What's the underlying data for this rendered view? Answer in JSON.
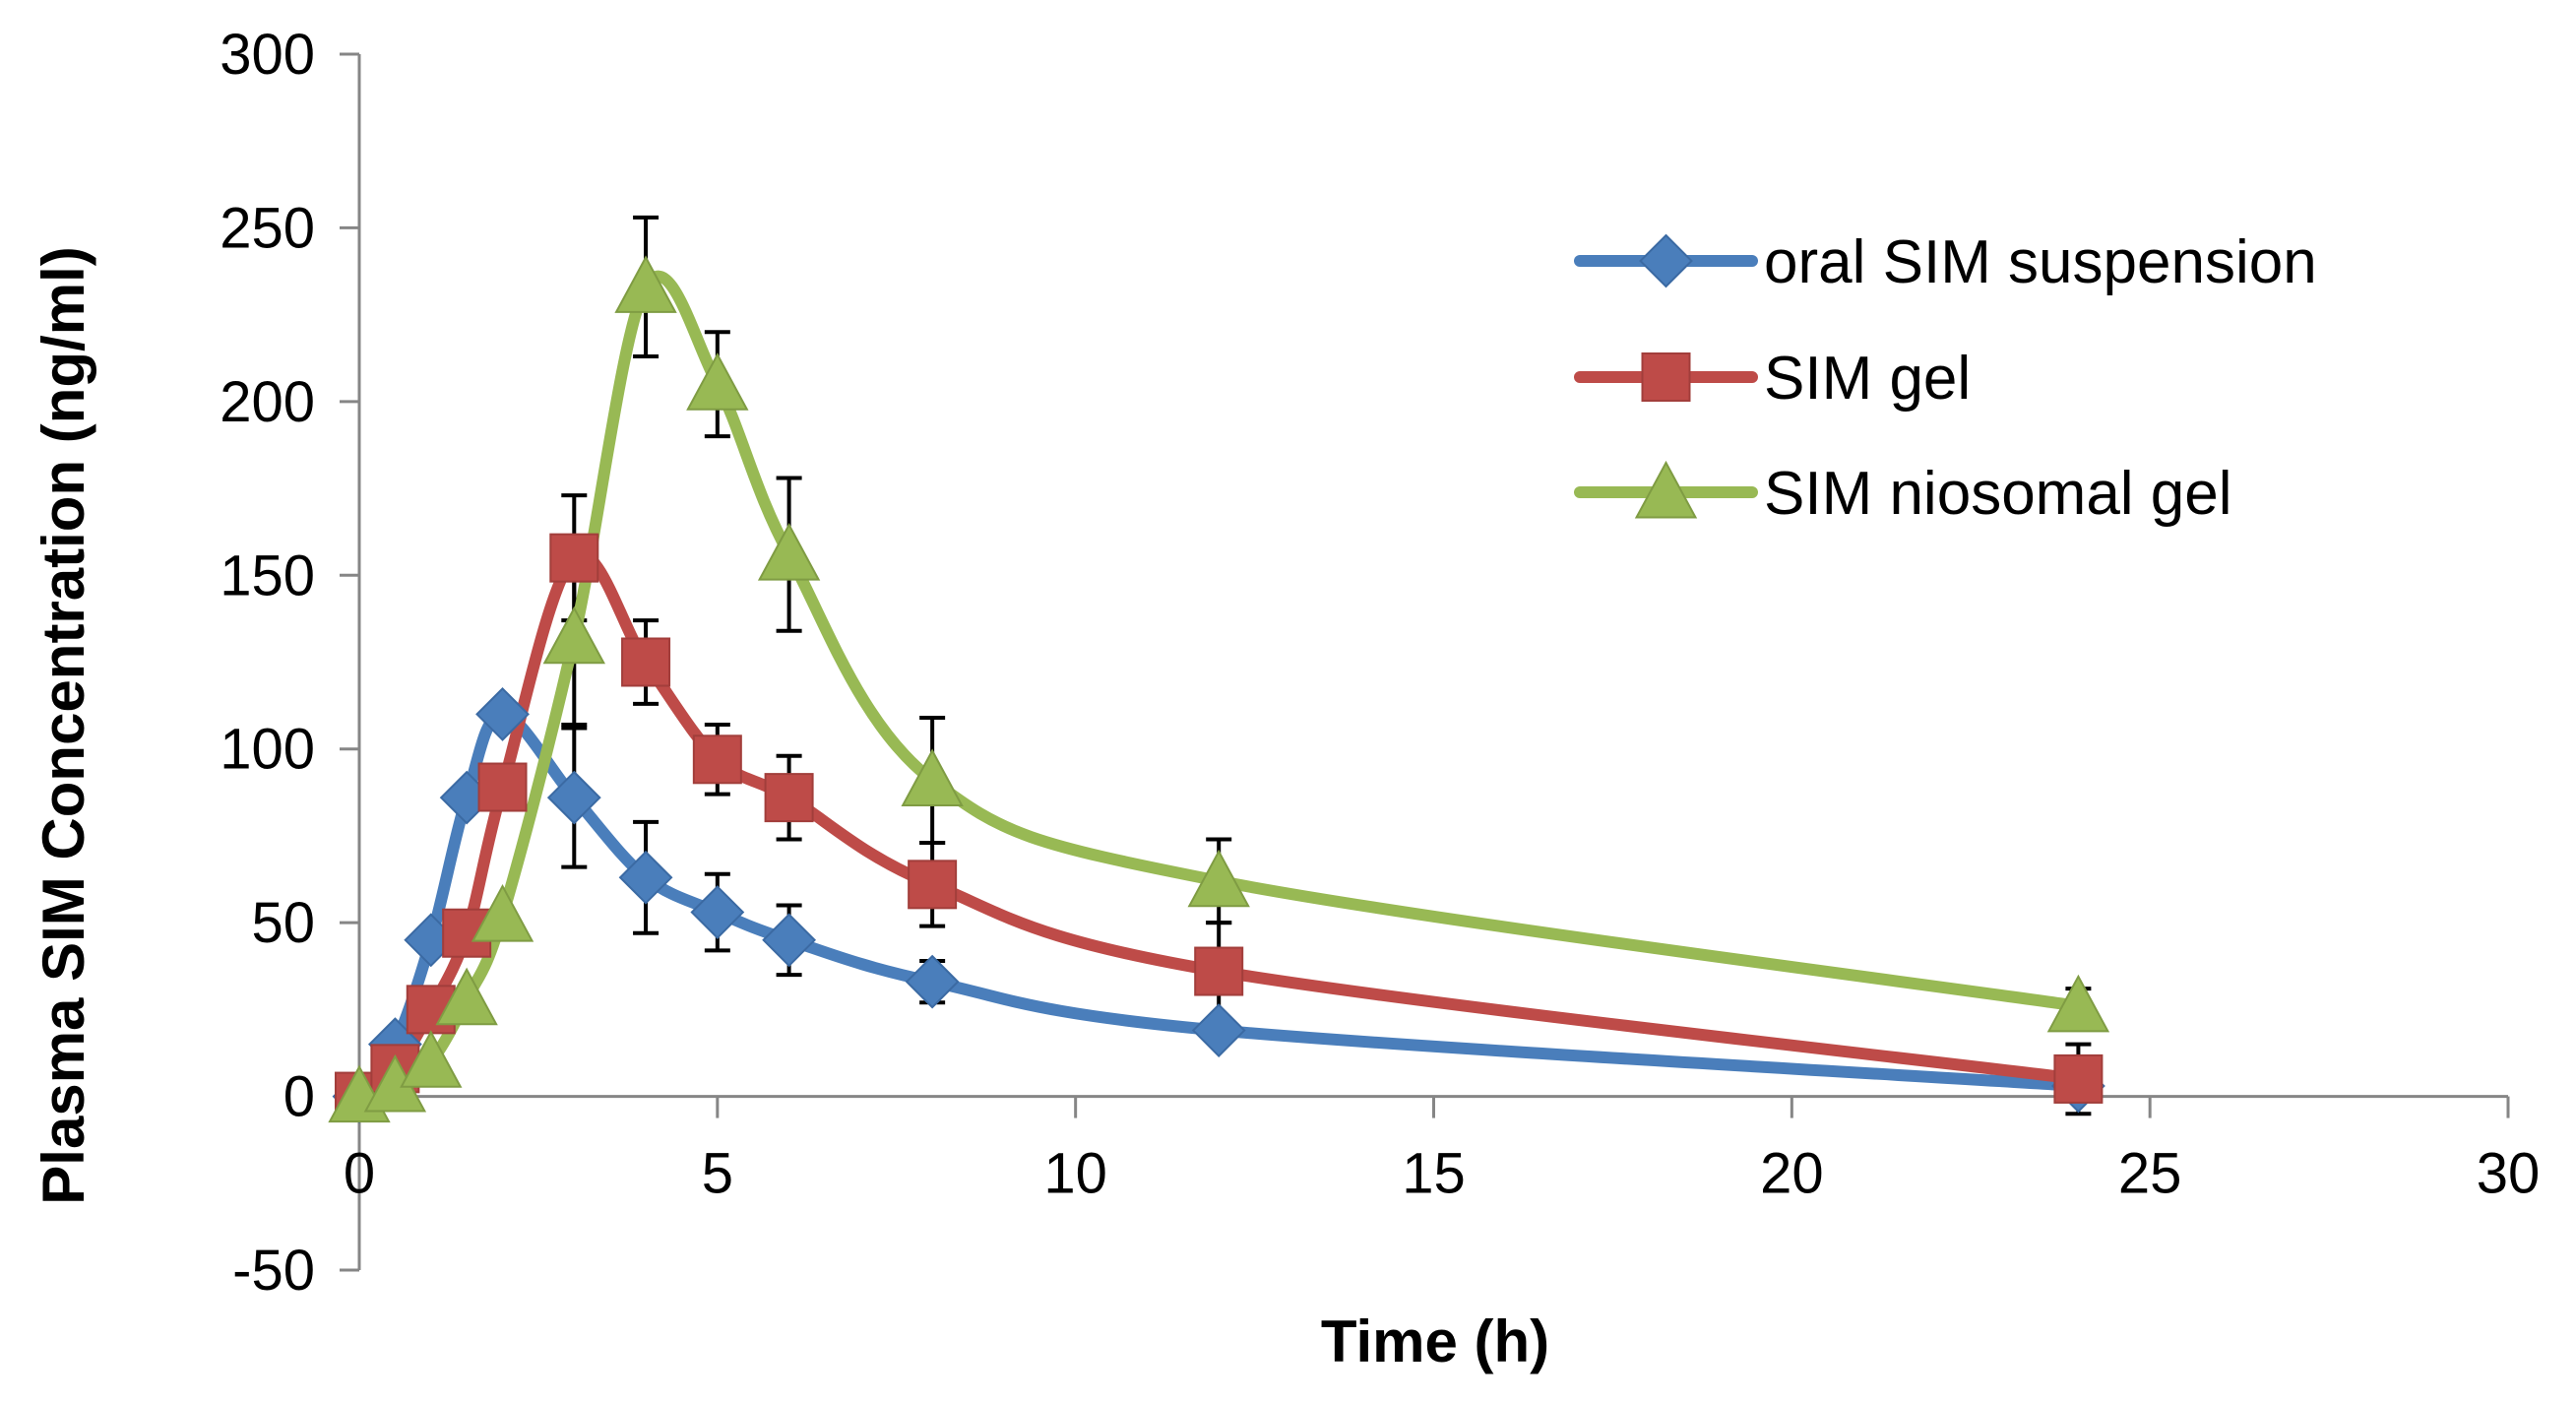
{
  "chart_data": {
    "type": "line",
    "title": "",
    "xlabel": "Time (h)",
    "ylabel": "Plasma SIM Concentration (ng/ml)",
    "xlim": [
      0,
      30
    ],
    "ylim": [
      -50,
      300
    ],
    "xticks": [
      0,
      5,
      10,
      15,
      20,
      25,
      30
    ],
    "yticks": [
      -50,
      0,
      50,
      100,
      150,
      200,
      250,
      300
    ],
    "grid": false,
    "legend_position": "top-right",
    "series": [
      {
        "name": "oral SIM suspension",
        "color": "#4a7ebb",
        "marker": "diamond",
        "x": [
          0,
          0.5,
          1,
          1.5,
          2,
          3,
          4,
          5,
          6,
          8,
          12,
          24
        ],
        "y": [
          0,
          15,
          45,
          86,
          110,
          86,
          63,
          53,
          45,
          33,
          19,
          3
        ],
        "err": [
          0,
          0,
          0,
          0,
          0,
          20,
          16,
          11,
          10,
          6,
          0,
          0
        ]
      },
      {
        "name": "SIM gel",
        "color": "#be4b48",
        "marker": "square",
        "x": [
          0,
          0.5,
          1,
          1.5,
          2,
          3,
          4,
          5,
          6,
          8,
          12,
          24
        ],
        "y": [
          0,
          8,
          25,
          47,
          89,
          155,
          125,
          97,
          86,
          61,
          36,
          5
        ],
        "err": [
          0,
          0,
          0,
          0,
          0,
          18,
          12,
          10,
          12,
          12,
          14,
          10
        ]
      },
      {
        "name": "SIM niosomal gel",
        "color": "#98b954",
        "marker": "triangle",
        "x": [
          0,
          0.5,
          1,
          1.5,
          2,
          3,
          4,
          5,
          6,
          8,
          12,
          24
        ],
        "y": [
          0,
          3,
          10,
          28,
          52,
          132,
          233,
          205,
          156,
          91,
          62,
          26
        ],
        "err": [
          0,
          0,
          0,
          0,
          0,
          25,
          20,
          15,
          22,
          18,
          12,
          5
        ]
      }
    ]
  }
}
